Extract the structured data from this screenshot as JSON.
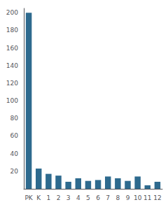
{
  "chart_data": {
    "type": "bar",
    "categories": [
      "PK",
      "K",
      "1",
      "2",
      "3",
      "4",
      "5",
      "6",
      "7",
      "8",
      "9",
      "10",
      "11",
      "12"
    ],
    "values": [
      200,
      23,
      17,
      15,
      8,
      12,
      9,
      10,
      14,
      12,
      9,
      14,
      4,
      8
    ],
    "color": "#2e6a8e",
    "ylim": [
      0,
      205
    ],
    "yticks": [
      20,
      40,
      60,
      80,
      100,
      120,
      140,
      160,
      180,
      200
    ],
    "grid": false
  }
}
